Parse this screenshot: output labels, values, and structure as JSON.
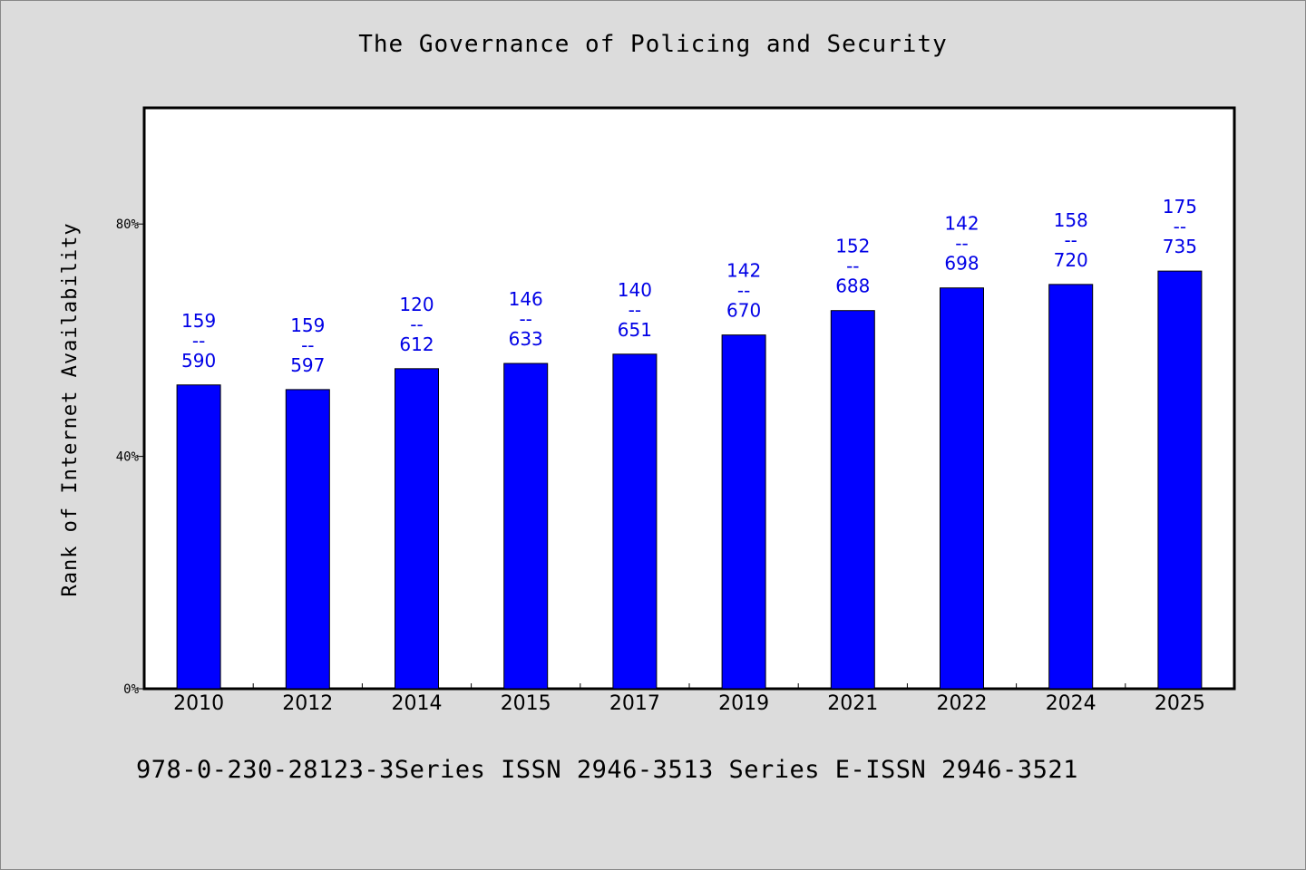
{
  "footnote": "978-0-230-28123-3Series ISSN 2946-3513 Series E-ISSN 2946-3521",
  "chart_data": {
    "type": "bar",
    "title": "The Governance of Policing and Security",
    "xlabel": "",
    "ylabel": "Rank of Internet Availability",
    "ylim": [
      0,
      100
    ],
    "yticks": [
      0,
      40,
      80
    ],
    "ytick_labels": [
      "0%",
      "40%",
      "80%"
    ],
    "categories": [
      "2010",
      "2012",
      "2014",
      "2015",
      "2017",
      "2019",
      "2021",
      "2022",
      "2024",
      "2025"
    ],
    "values": [
      52.3,
      51.5,
      55.1,
      56.0,
      57.6,
      60.9,
      65.1,
      69.0,
      69.6,
      71.9
    ],
    "data_labels": [
      [
        "159",
        "--",
        "590"
      ],
      [
        "159",
        "--",
        "597"
      ],
      [
        "120",
        "--",
        "612"
      ],
      [
        "146",
        "--",
        "633"
      ],
      [
        "140",
        "--",
        "651"
      ],
      [
        "142",
        "--",
        "670"
      ],
      [
        "152",
        "--",
        "688"
      ],
      [
        "142",
        "--",
        "698"
      ],
      [
        "158",
        "--",
        "720"
      ],
      [
        "175",
        "--",
        "735"
      ]
    ],
    "bar_color": "#0000ff",
    "label_color": "#0000e6",
    "grid": false,
    "legend": "none"
  }
}
